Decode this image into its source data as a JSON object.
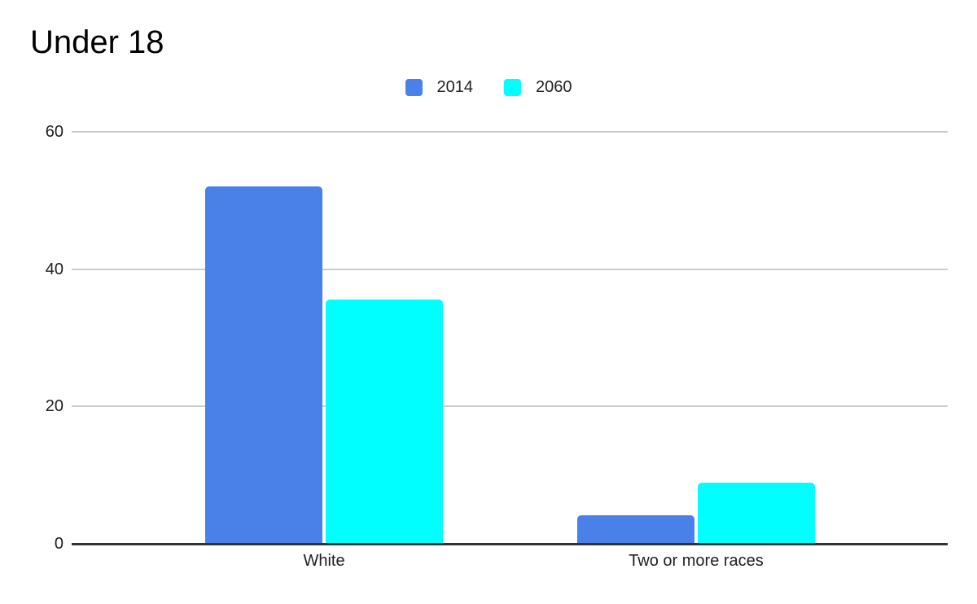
{
  "header": {
    "title": "Under 18"
  },
  "chart_data": {
    "type": "bar",
    "title": "Under 18",
    "categories": [
      "White",
      "Two or more races"
    ],
    "series": [
      {
        "name": "2014",
        "color": "#4a81e8",
        "values": [
          52,
          4.1
        ]
      },
      {
        "name": "2060",
        "color": "#00ffff",
        "values": [
          35.6,
          8.9
        ]
      }
    ],
    "xlabel": "",
    "ylabel": "",
    "ylim": [
      0,
      60
    ],
    "yticks": [
      0,
      20,
      40,
      60
    ],
    "grid": true,
    "legend_position": "top-center",
    "background_color": "#ffffff",
    "gridline_color": "#cccccc",
    "baseline_color": "#333333",
    "axis_text_color": "#1f1f1f",
    "title_color": "#000000"
  }
}
